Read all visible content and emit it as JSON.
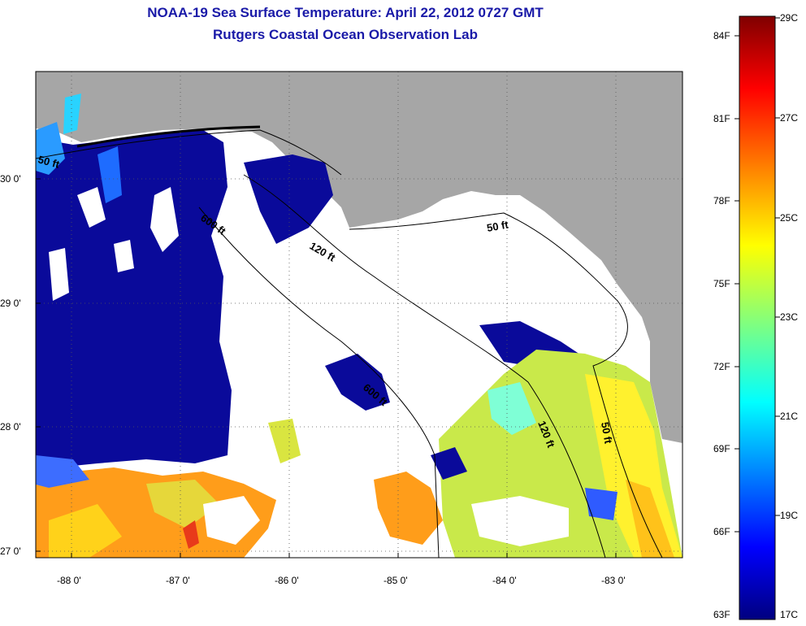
{
  "title": {
    "line1": "NOAA-19 Sea Surface Temperature:  April 22, 2012 0727 GMT",
    "line2": "Rutgers Coastal Ocean Observation Lab"
  },
  "axes": {
    "lon_ticks": [
      "-88 0'",
      "-87 0'",
      "-86 0'",
      "-85 0'",
      "-84 0'",
      "-83 0'"
    ],
    "lat_ticks": [
      "30 0'",
      "29 0'",
      "28 0'",
      "27 0'"
    ]
  },
  "depth_contours": {
    "a": "50 ft",
    "b": "600 ft",
    "c": "120 ft",
    "d": "50 ft",
    "e": "600 ft",
    "f": "120 ft",
    "g": "50 ft"
  },
  "colorbar": {
    "f_labels": [
      "84F",
      "81F",
      "78F",
      "75F",
      "72F",
      "69F",
      "66F",
      "63F"
    ],
    "c_labels": [
      "29C",
      "27C",
      "25C",
      "23C",
      "21C",
      "19C",
      "17C"
    ],
    "colors": [
      "#00007f",
      "#0000ff",
      "#007fff",
      "#00ffff",
      "#7fff7f",
      "#ffff00",
      "#ff7f00",
      "#ff0000",
      "#7f0000"
    ]
  },
  "legend_colors": {
    "land": "#a6a6a6",
    "cloud": "#ffffff",
    "cold": "#0a0a9a",
    "warm": "#ff9900",
    "mid": "#e5ff30"
  }
}
